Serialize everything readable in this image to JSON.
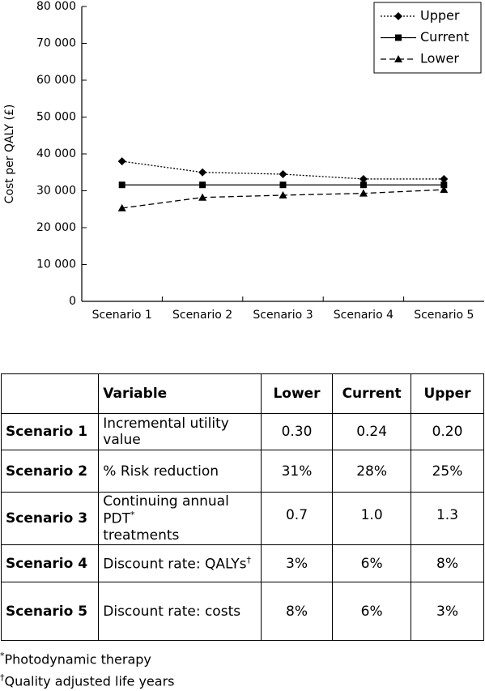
{
  "chart_data": {
    "type": "line",
    "y_label": "Cost per QALY (£)",
    "categories": [
      "Scenario 1",
      "Scenario 2",
      "Scenario 3",
      "Scenario 4",
      "Scenario 5"
    ],
    "ylim": [
      0,
      80000
    ],
    "yticks": [
      0,
      {
        "value": 10000,
        "label": "10 000"
      },
      {
        "value": 20000,
        "label": "20 000"
      },
      {
        "value": 30000,
        "label": "30 000"
      },
      {
        "value": 40000,
        "label": "40 000"
      },
      {
        "value": 50000,
        "label": "50 000"
      },
      {
        "value": 60000,
        "label": "60 000"
      },
      {
        "value": 70000,
        "label": "70 000"
      },
      {
        "value": 80000,
        "label": "80 000"
      }
    ],
    "legend": "top-right",
    "series": [
      {
        "name": "Upper",
        "color": "#000000",
        "dash": "dotted",
        "marker": "diamond",
        "values": [
          38000,
          35000,
          34500,
          33200,
          33200
        ]
      },
      {
        "name": "Current",
        "color": "#000000",
        "dash": "solid",
        "marker": "square",
        "values": [
          31600,
          31600,
          31600,
          31600,
          31600
        ]
      },
      {
        "name": "Lower",
        "color": "#000000",
        "dash": "dashed",
        "marker": "triangle",
        "values": [
          25300,
          28200,
          28800,
          29300,
          30300
        ]
      }
    ]
  },
  "table": {
    "columns": [
      "Variable",
      "Lower",
      "Current",
      "Upper"
    ],
    "rows": [
      {
        "label": "Scenario 1",
        "variable": "Incremental utility value",
        "values": [
          "0.30",
          "0.24",
          "0.20"
        ]
      },
      {
        "label": "Scenario 2",
        "variable": "% Risk reduction",
        "values": [
          "31%",
          "28%",
          "25%"
        ]
      },
      {
        "label": "Scenario 3",
        "variable": "Continuing annual PDT",
        "mark": "*",
        "variable_cont": "treatments",
        "values": [
          "0.7",
          "1.0",
          "1.3"
        ]
      },
      {
        "label": "Scenario 4",
        "variable": "Discount rate: QALYs",
        "mark": "†",
        "values": [
          "3%",
          "6%",
          "8%"
        ]
      },
      {
        "label": "Scenario 5",
        "variable": "Discount rate: costs",
        "values": [
          "8%",
          "6%",
          "3%"
        ]
      }
    ]
  },
  "footnotes": [
    {
      "mark": "*",
      "text": "Photodynamic therapy"
    },
    {
      "mark": "†",
      "text": "Quality adjusted life years"
    }
  ]
}
